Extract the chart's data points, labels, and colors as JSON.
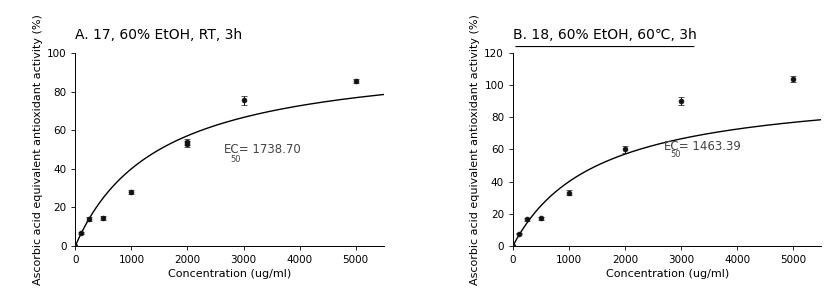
{
  "panel_A": {
    "title": "A. 17, 60% EtOH, RT, 3h",
    "title_underline": false,
    "x_data": [
      0,
      100,
      250,
      500,
      1000,
      2000,
      2000,
      3000,
      5000
    ],
    "y_data": [
      0,
      6.5,
      14.0,
      14.5,
      28.0,
      54.0,
      53.0,
      75.5,
      85.5
    ],
    "y_err": [
      0.0,
      0.5,
      1.0,
      1.0,
      1.0,
      1.5,
      1.5,
      2.5,
      1.0
    ],
    "ec50_label": "EC",
    "ec50_sub": "50",
    "ec50_val": " = 1738.70",
    "ec50_x": 2650,
    "ec50_y": 50,
    "xlabel": "Concentration (ug/ml)",
    "ylabel": "Ascorbic acid equivalent antioxidant activity (%)",
    "xlim": [
      0,
      5500
    ],
    "ylim": [
      0,
      100
    ],
    "yticks": [
      0,
      20,
      40,
      60,
      80,
      100
    ],
    "xticks": [
      0,
      1000,
      2000,
      3000,
      4000,
      5000
    ]
  },
  "panel_B": {
    "title": "B. 18, 60% EtOH, 60℃, 3h",
    "title_underline": true,
    "x_data": [
      0,
      100,
      250,
      500,
      1000,
      2000,
      3000,
      5000
    ],
    "y_data": [
      0,
      7.5,
      16.5,
      17.0,
      33.0,
      60.0,
      90.0,
      104.0
    ],
    "y_err": [
      0.0,
      0.5,
      1.0,
      1.0,
      1.5,
      2.0,
      2.5,
      2.0
    ],
    "ec50_label": "EC",
    "ec50_sub": "50",
    "ec50_val": " = 1463.39",
    "ec50_x": 2700,
    "ec50_y": 62,
    "xlabel": "Concentration (ug/ml)",
    "ylabel": "Ascorbic acid equivalent antioxidant activity (%)",
    "xlim": [
      0,
      5500
    ],
    "ylim": [
      0,
      120
    ],
    "yticks": [
      0,
      20,
      40,
      60,
      80,
      100,
      120
    ],
    "xticks": [
      0,
      1000,
      2000,
      3000,
      4000,
      5000
    ]
  },
  "line_color": "#000000",
  "marker_color": "#111111",
  "background_color": "#ffffff",
  "fontsize_title": 10,
  "fontsize_label": 8,
  "fontsize_tick": 7.5,
  "fontsize_ec50": 8.5
}
